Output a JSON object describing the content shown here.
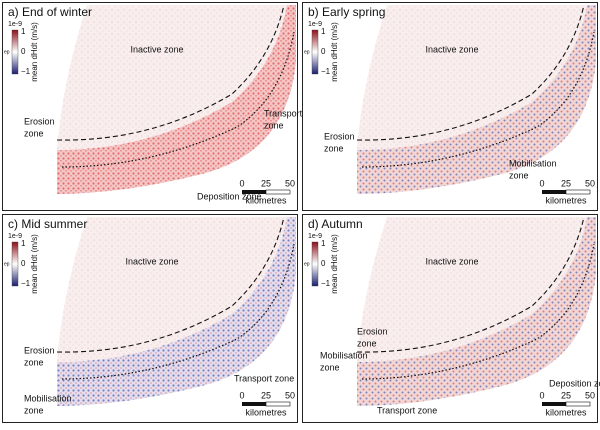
{
  "panels": [
    {
      "title": "a) End of winter",
      "zones": [
        {
          "lines": [
            "Inactive zone"
          ]
        },
        {
          "lines": [
            "Erosion",
            "zone"
          ]
        },
        {
          "lines": [
            "Transport",
            "zone"
          ]
        },
        {
          "lines": [
            "Deposition zone"
          ]
        }
      ]
    },
    {
      "title": "b) Early spring",
      "zones": [
        {
          "lines": [
            "Inactive zone"
          ]
        },
        {
          "lines": [
            "Erosion",
            "zone"
          ]
        },
        {
          "lines": [
            "Mobilisation",
            "zone"
          ]
        }
      ]
    },
    {
      "title": "c) Mid summer",
      "zones": [
        {
          "lines": [
            "Inactive zone"
          ]
        },
        {
          "lines": [
            "Erosion",
            "zone"
          ]
        },
        {
          "lines": [
            "Mobilisation",
            "zone"
          ]
        },
        {
          "lines": [
            "Transport zone"
          ]
        }
      ]
    },
    {
      "title": "d) Autumn",
      "zones": [
        {
          "lines": [
            "Inactive zone"
          ]
        },
        {
          "lines": [
            "Erosion",
            "zone"
          ]
        },
        {
          "lines": [
            "Mobilisation",
            "zone"
          ]
        },
        {
          "lines": [
            "Deposition zone"
          ]
        },
        {
          "lines": [
            "Transport zone"
          ]
        }
      ]
    }
  ],
  "colorbar": {
    "exponent": "1e-9",
    "ticks": [
      "1",
      "0",
      "−1"
    ],
    "label": "mean dHdt (m/s)",
    "tag": "ep"
  },
  "scalebar": {
    "ticks": [
      "0",
      "25",
      "50"
    ],
    "unit": "kilometres"
  }
}
